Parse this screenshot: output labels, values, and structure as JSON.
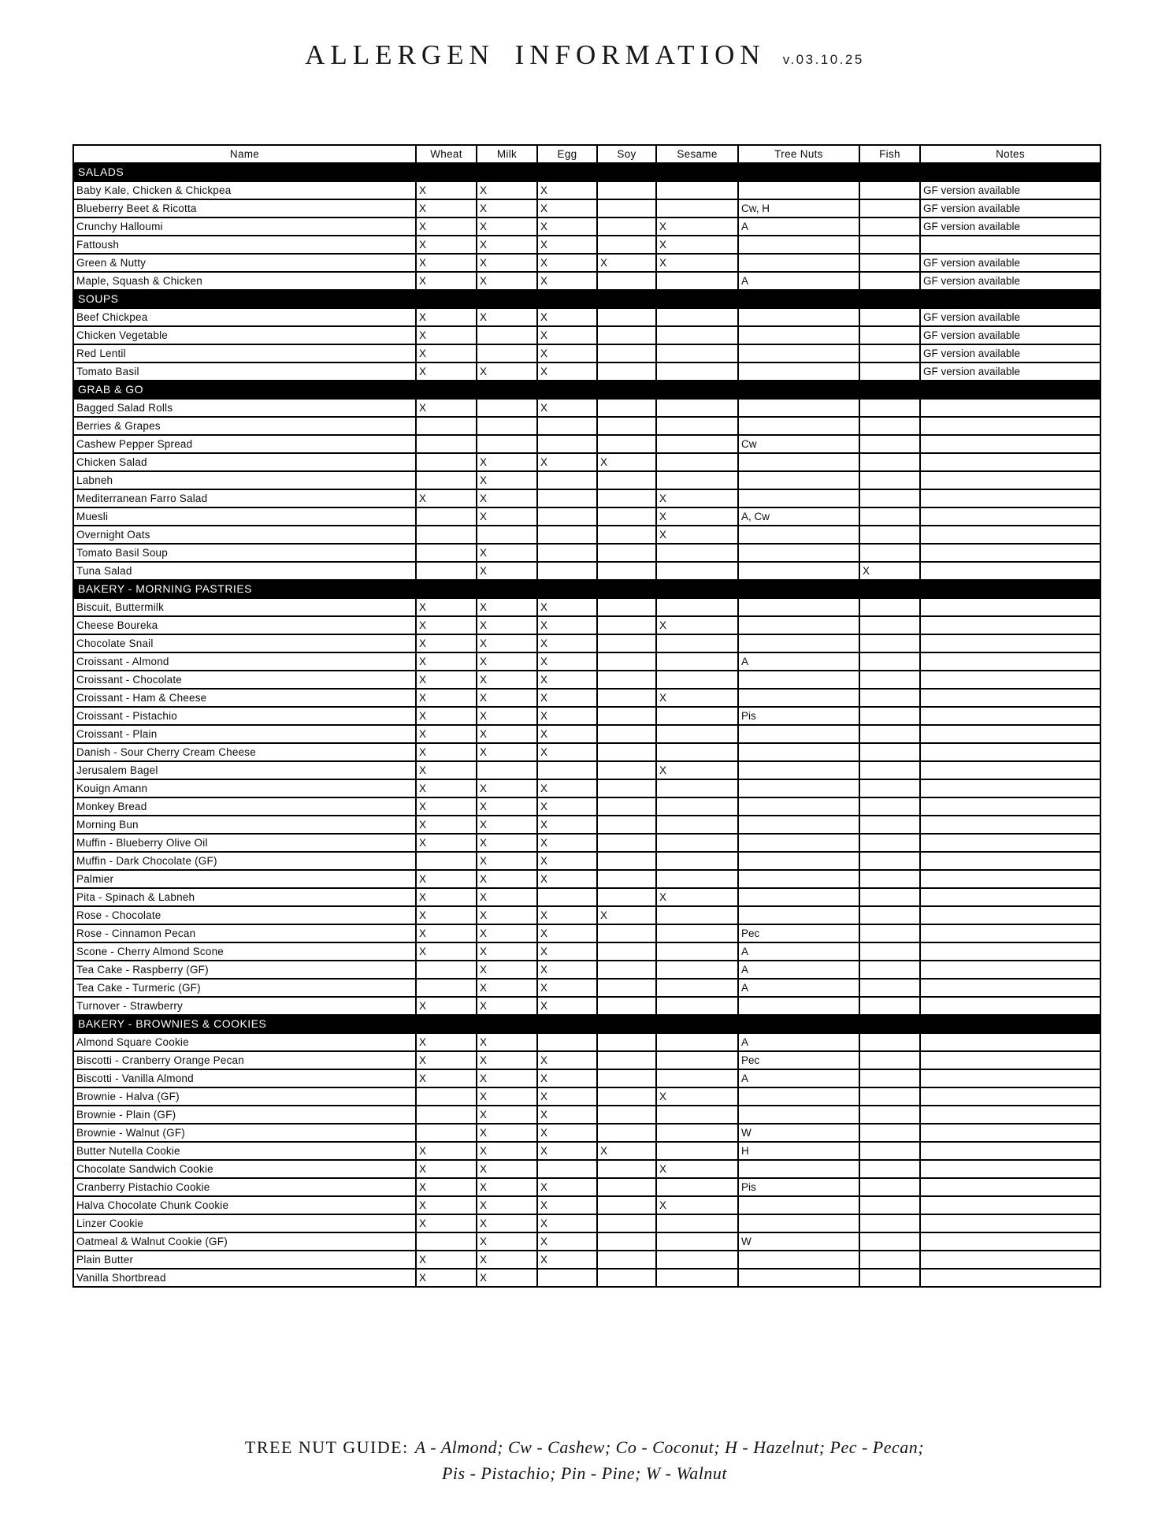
{
  "header": {
    "title": "ALLERGEN INFORMATION",
    "version": "v.03.10.25"
  },
  "table": {
    "columns": [
      "Name",
      "Wheat",
      "Milk",
      "Egg",
      "Soy",
      "Sesame",
      "Tree Nuts",
      "Fish",
      "Notes"
    ],
    "sections": [
      {
        "label": "SALADS",
        "rows": [
          [
            "Baby Kale, Chicken & Chickpea",
            "X",
            "X",
            "X",
            "",
            "",
            "",
            "",
            "GF version available"
          ],
          [
            "Blueberry Beet & Ricotta",
            "X",
            "X",
            "X",
            "",
            "",
            "Cw, H",
            "",
            "GF version available"
          ],
          [
            "Crunchy Halloumi",
            "X",
            "X",
            "X",
            "",
            "X",
            "A",
            "",
            "GF version available"
          ],
          [
            "Fattoush",
            "X",
            "X",
            "X",
            "",
            "X",
            "",
            "",
            ""
          ],
          [
            "Green & Nutty",
            "X",
            "X",
            "X",
            "X",
            "X",
            "",
            "",
            "GF version available"
          ],
          [
            "Maple, Squash & Chicken",
            "X",
            "X",
            "X",
            "",
            "",
            "A",
            "",
            "GF version available"
          ]
        ]
      },
      {
        "label": "SOUPS",
        "rows": [
          [
            "Beef Chickpea",
            "X",
            "X",
            "X",
            "",
            "",
            "",
            "",
            "GF version available"
          ],
          [
            "Chicken Vegetable",
            "X",
            "",
            "X",
            "",
            "",
            "",
            "",
            "GF version available"
          ],
          [
            "Red Lentil",
            "X",
            "",
            "X",
            "",
            "",
            "",
            "",
            "GF version available"
          ],
          [
            "Tomato Basil",
            "X",
            "X",
            "X",
            "",
            "",
            "",
            "",
            "GF version available"
          ]
        ]
      },
      {
        "label": "GRAB & GO",
        "rows": [
          [
            "Bagged Salad Rolls",
            "X",
            "",
            "X",
            "",
            "",
            "",
            "",
            ""
          ],
          [
            "Berries & Grapes",
            "",
            "",
            "",
            "",
            "",
            "",
            "",
            ""
          ],
          [
            "Cashew Pepper Spread",
            "",
            "",
            "",
            "",
            "",
            "Cw",
            "",
            ""
          ],
          [
            "Chicken Salad",
            "",
            "X",
            "X",
            "X",
            "",
            "",
            "",
            ""
          ],
          [
            "Labneh",
            "",
            "X",
            "",
            "",
            "",
            "",
            "",
            ""
          ],
          [
            "Mediterranean Farro Salad",
            "X",
            "X",
            "",
            "",
            "X",
            "",
            "",
            ""
          ],
          [
            "Muesli",
            "",
            "X",
            "",
            "",
            "X",
            "A, Cw",
            "",
            ""
          ],
          [
            "Overnight Oats",
            "",
            "",
            "",
            "",
            "X",
            "",
            "",
            ""
          ],
          [
            "Tomato Basil Soup",
            "",
            "X",
            "",
            "",
            "",
            "",
            "",
            ""
          ],
          [
            "Tuna Salad",
            "",
            "X",
            "",
            "",
            "",
            "",
            "X",
            ""
          ]
        ]
      },
      {
        "label": "BAKERY - MORNING PASTRIES",
        "rows": [
          [
            "Biscuit, Buttermilk",
            "X",
            "X",
            "X",
            "",
            "",
            "",
            "",
            ""
          ],
          [
            "Cheese Boureka",
            "X",
            "X",
            "X",
            "",
            "X",
            "",
            "",
            ""
          ],
          [
            "Chocolate Snail",
            "X",
            "X",
            "X",
            "",
            "",
            "",
            "",
            ""
          ],
          [
            "Croissant - Almond",
            "X",
            "X",
            "X",
            "",
            "",
            "A",
            "",
            ""
          ],
          [
            "Croissant - Chocolate",
            "X",
            "X",
            "X",
            "",
            "",
            "",
            "",
            ""
          ],
          [
            "Croissant - Ham & Cheese",
            "X",
            "X",
            "X",
            "",
            "X",
            "",
            "",
            ""
          ],
          [
            "Croissant - Pistachio",
            "X",
            "X",
            "X",
            "",
            "",
            "Pis",
            "",
            ""
          ],
          [
            "Croissant - Plain",
            "X",
            "X",
            "X",
            "",
            "",
            "",
            "",
            ""
          ],
          [
            "Danish - Sour Cherry Cream Cheese",
            "X",
            "X",
            "X",
            "",
            "",
            "",
            "",
            ""
          ],
          [
            "Jerusalem Bagel",
            "X",
            "",
            "",
            "",
            "X",
            "",
            "",
            ""
          ],
          [
            "Kouign Amann",
            "X",
            "X",
            "X",
            "",
            "",
            "",
            "",
            ""
          ],
          [
            "Monkey Bread",
            "X",
            "X",
            "X",
            "",
            "",
            "",
            "",
            ""
          ],
          [
            "Morning Bun",
            "X",
            "X",
            "X",
            "",
            "",
            "",
            "",
            ""
          ],
          [
            "Muffin - Blueberry Olive Oil",
            "X",
            "X",
            "X",
            "",
            "",
            "",
            "",
            ""
          ],
          [
            "Muffin - Dark Chocolate (GF)",
            "",
            "X",
            "X",
            "",
            "",
            "",
            "",
            ""
          ],
          [
            "Palmier",
            "X",
            "X",
            "X",
            "",
            "",
            "",
            "",
            ""
          ],
          [
            "Pita - Spinach & Labneh",
            "X",
            "X",
            "",
            "",
            "X",
            "",
            "",
            ""
          ],
          [
            "Rose - Chocolate",
            "X",
            "X",
            "X",
            "X",
            "",
            "",
            "",
            ""
          ],
          [
            "Rose - Cinnamon Pecan",
            "X",
            "X",
            "X",
            "",
            "",
            "Pec",
            "",
            ""
          ],
          [
            "Scone - Cherry Almond Scone",
            "X",
            "X",
            "X",
            "",
            "",
            "A",
            "",
            ""
          ],
          [
            "Tea Cake - Raspberry (GF)",
            "",
            "X",
            "X",
            "",
            "",
            "A",
            "",
            ""
          ],
          [
            "Tea Cake - Turmeric (GF)",
            "",
            "X",
            "X",
            "",
            "",
            "A",
            "",
            ""
          ],
          [
            "Turnover - Strawberry",
            "X",
            "X",
            "X",
            "",
            "",
            "",
            "",
            ""
          ]
        ]
      },
      {
        "label": "BAKERY - BROWNIES & COOKIES",
        "rows": [
          [
            "Almond Square Cookie",
            "X",
            "X",
            "",
            "",
            "",
            "A",
            "",
            ""
          ],
          [
            "Biscotti - Cranberry Orange Pecan",
            "X",
            "X",
            "X",
            "",
            "",
            "Pec",
            "",
            ""
          ],
          [
            "Biscotti - Vanilla Almond",
            "X",
            "X",
            "X",
            "",
            "",
            "A",
            "",
            ""
          ],
          [
            "Brownie - Halva (GF)",
            "",
            "X",
            "X",
            "",
            "X",
            "",
            "",
            ""
          ],
          [
            "Brownie - Plain (GF)",
            "",
            "X",
            "X",
            "",
            "",
            "",
            "",
            ""
          ],
          [
            "Brownie - Walnut (GF)",
            "",
            "X",
            "X",
            "",
            "",
            "W",
            "",
            ""
          ],
          [
            "Butter Nutella Cookie",
            "X",
            "X",
            "X",
            "X",
            "",
            "H",
            "",
            ""
          ],
          [
            "Chocolate Sandwich Cookie",
            "X",
            "X",
            "",
            "",
            "X",
            "",
            "",
            ""
          ],
          [
            "Cranberry Pistachio Cookie",
            "X",
            "X",
            "X",
            "",
            "",
            "Pis",
            "",
            ""
          ],
          [
            "Halva Chocolate Chunk Cookie",
            "X",
            "X",
            "X",
            "",
            "X",
            "",
            "",
            ""
          ],
          [
            "Linzer Cookie",
            "X",
            "X",
            "X",
            "",
            "",
            "",
            "",
            ""
          ],
          [
            "Oatmeal & Walnut Cookie (GF)",
            "",
            "X",
            "X",
            "",
            "",
            "W",
            "",
            ""
          ],
          [
            "Plain Butter",
            "X",
            "X",
            "X",
            "",
            "",
            "",
            "",
            ""
          ],
          [
            "Vanilla Shortbread",
            "X",
            "X",
            "",
            "",
            "",
            "",
            "",
            ""
          ]
        ]
      }
    ]
  },
  "footer": {
    "label": "TREE NUT GUIDE:",
    "line1": "A - Almond; Cw - Cashew; Co - Coconut; H - Hazelnut; Pec - Pecan;",
    "line2": "Pis - Pistachio; Pin - Pine; W - Walnut"
  }
}
